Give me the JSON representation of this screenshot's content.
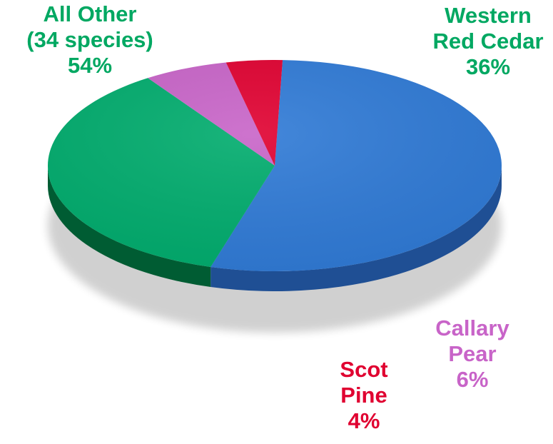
{
  "chart_data": {
    "type": "pie",
    "style": "3d-pie",
    "title": "",
    "slices": [
      {
        "name": "All Other\n(34 species)",
        "percent_label": "54%",
        "value": 54,
        "color": "#2f7ad6",
        "side_color": "#1f4f94",
        "label_color": "#00a862"
      },
      {
        "name": "Western\nRed Cedar",
        "percent_label": "36%",
        "value": 36,
        "color": "#00ac6d",
        "side_color": "#005c33",
        "label_color": "#00a862"
      },
      {
        "name": "Callary\nPear",
        "percent_label": "6%",
        "value": 6,
        "color": "#c864c8",
        "side_color": "#5e2a58",
        "label_color": "#c864c8"
      },
      {
        "name": "Scot\nPine",
        "percent_label": "4%",
        "value": 4,
        "color": "#e00030",
        "side_color": "#70001a",
        "label_color": "#e00030"
      }
    ]
  }
}
